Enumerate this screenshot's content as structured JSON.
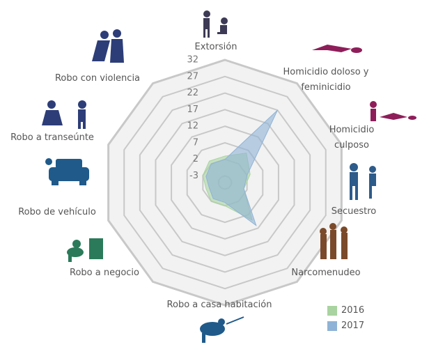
{
  "chart_data": {
    "type": "radar",
    "categories": [
      "Extorsión",
      "Homicidio doloso y feminicidio",
      "Homicidio culposo",
      "Secuestro",
      "Narcomenudeo",
      "Robo a casa habitación",
      "Robo a negocio",
      "Robo de vehículo",
      "Robo a transeúnte",
      "Robo con violencia"
    ],
    "series": [
      {
        "name": "2016",
        "color": "#a9d3a0",
        "values": [
          3,
          6,
          3,
          1,
          9,
          2,
          2,
          1,
          2,
          3
        ]
      },
      {
        "name": "2017",
        "color": "#8fb3d6",
        "values": [
          2,
          22,
          2,
          1,
          11,
          1,
          1,
          0,
          1,
          2
        ]
      }
    ],
    "ylim": [
      -5,
      32
    ],
    "yticks": [
      -3,
      2,
      7,
      12,
      17,
      22,
      27,
      32
    ],
    "grid": true,
    "legend": "bottom-right"
  }
}
